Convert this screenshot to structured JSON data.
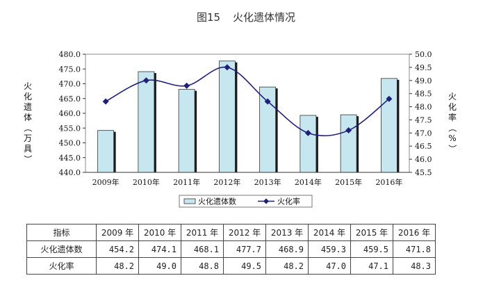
{
  "title": {
    "fig": "图15",
    "text": "火化遗体情况"
  },
  "chart_data": {
    "type": "bar+line",
    "categories": [
      "2009年",
      "2010年",
      "2011年",
      "2012年",
      "2013年",
      "2014年",
      "2015年",
      "2016年"
    ],
    "series": [
      {
        "name": "火化遗体数",
        "type": "bar",
        "axis": "left",
        "color": "#c6e7ef",
        "values": [
          454.2,
          474.1,
          468.1,
          477.7,
          468.9,
          459.3,
          459.5,
          471.8
        ]
      },
      {
        "name": "火化率",
        "type": "line",
        "axis": "right",
        "color": "#1f1f7a",
        "values": [
          48.2,
          49.0,
          48.8,
          49.5,
          48.2,
          47.0,
          47.1,
          48.3
        ]
      }
    ],
    "ylabel_left": "火化遗体（万具）",
    "ylabel_right": "火化率（%）",
    "ylim_left": [
      440.0,
      480.0
    ],
    "ylim_right": [
      45.5,
      50.0
    ],
    "left_ticks": [
      "440.0",
      "445.0",
      "450.0",
      "455.0",
      "460.0",
      "465.0",
      "470.0",
      "475.0",
      "480.0"
    ],
    "right_ticks": [
      "45.5",
      "46.0",
      "46.5",
      "47.0",
      "47.5",
      "48.0",
      "48.5",
      "49.0",
      "49.5",
      "50.0"
    ],
    "grid": false,
    "legend": "bottom"
  },
  "table": {
    "header_label": "指标",
    "years": [
      "2009 年",
      "2010 年",
      "2011 年",
      "2012 年",
      "2013 年",
      "2014 年",
      "2015 年",
      "2016 年"
    ],
    "rows": [
      {
        "label": "火化遗体数",
        "values": [
          "454.2",
          "474.1",
          "468.1",
          "477.7",
          "468.9",
          "459.3",
          "459.5",
          "471.8"
        ]
      },
      {
        "label": "火化率",
        "values": [
          "48.2",
          "49.0",
          "48.8",
          "49.5",
          "48.2",
          "47.0",
          "47.1",
          "48.3"
        ]
      }
    ]
  }
}
